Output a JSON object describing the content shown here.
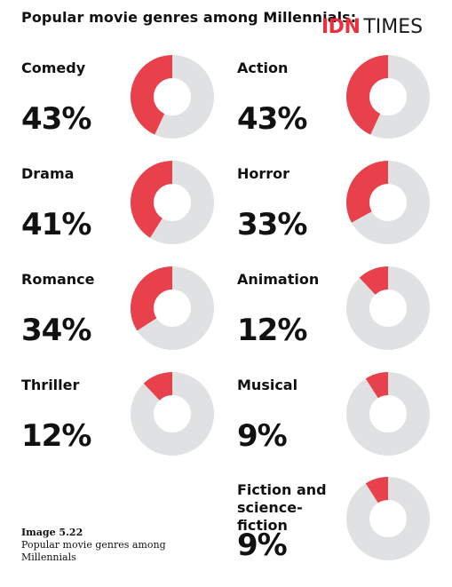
{
  "title": "Popular movie genres among Millennials:",
  "logo": {
    "brand_accent": "IDN",
    "brand_rest": "TIMES"
  },
  "colors": {
    "highlight": "#e8414b",
    "track": "#e0e1e3",
    "logo_red": "#e8303e"
  },
  "caption": {
    "label": "Image 5.22",
    "text": "Popular movie genres among Millennials"
  },
  "chart_data": {
    "type": "pie",
    "title": "Popular movie genres among Millennials:",
    "categories": [
      "Comedy",
      "Action",
      "Drama",
      "Horror",
      "Romance",
      "Animation",
      "Thriller",
      "Musical",
      "Fiction and science-fiction"
    ],
    "values": [
      43,
      43,
      41,
      33,
      34,
      12,
      12,
      9,
      9
    ],
    "labels": [
      "43%",
      "43%",
      "41%",
      "33%",
      "34%",
      "12%",
      "12%",
      "9%",
      "9%"
    ],
    "unit": "%",
    "style": "small-multiple donuts"
  }
}
